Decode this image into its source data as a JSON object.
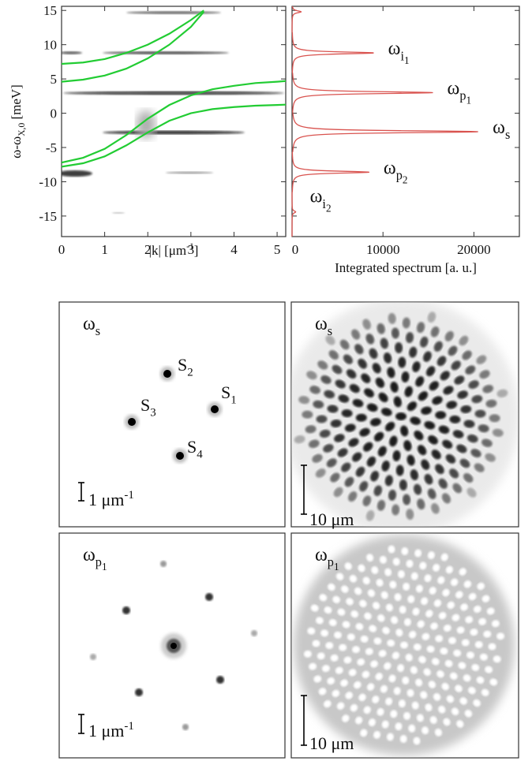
{
  "chart_data": [
    {
      "type": "line",
      "x_label": {
        "text": "|k| [μm",
        "sup": "-1",
        "after": "]"
      },
      "y_label": {
        "text": "ω-ω",
        "sub": "X,0",
        "after": " [meV]"
      },
      "xlim": [
        0,
        5.2
      ],
      "ylim": [
        -18,
        15.6
      ],
      "xticks": [
        0,
        1,
        2,
        3,
        4,
        5
      ],
      "yticks": [
        -15,
        -10,
        -5,
        0,
        5,
        10,
        15
      ],
      "series": [
        {
          "color": "#22cc33",
          "x": [
            0,
            0.5,
            1,
            1.5,
            2,
            2.5,
            3,
            3.5,
            4,
            4.5,
            5,
            5.2
          ],
          "values": [
            -7.2,
            -6.5,
            -5.2,
            -3.2,
            -0.8,
            1.2,
            2.6,
            3.5,
            4.0,
            4.4,
            4.6,
            4.7
          ]
        },
        {
          "color": "#22cc33",
          "x": [
            0,
            0.5,
            1,
            1.5,
            2,
            2.5,
            3,
            3.5,
            4,
            4.5,
            5,
            5.2
          ],
          "values": [
            -7.8,
            -7.3,
            -6.3,
            -4.7,
            -2.8,
            -1.1,
            0,
            0.6,
            0.9,
            1.1,
            1.2,
            1.25
          ]
        },
        {
          "color": "#22cc33",
          "x": [
            0,
            0.5,
            1,
            1.5,
            2,
            2.5,
            3,
            3.3
          ],
          "values": [
            7.2,
            7.4,
            7.9,
            8.8,
            10,
            11.6,
            13.6,
            15
          ]
        },
        {
          "color": "#22cc33",
          "x": [
            0,
            0.5,
            1,
            1.5,
            2,
            2.5,
            3,
            3.3
          ],
          "values": [
            4.6,
            4.9,
            5.5,
            6.5,
            8,
            10,
            12.6,
            14.8
          ]
        }
      ]
    },
    {
      "type": "spectrum",
      "x_label": "Integrated spectrum [a. u.]",
      "xlim": [
        0,
        25000
      ],
      "ylim": [
        -18,
        15.6
      ],
      "xticks": [
        0,
        10000,
        20000
      ],
      "color": "#d9534f",
      "peaks": [
        {
          "energy": 14.8,
          "intensity": 1000
        },
        {
          "energy": 8.8,
          "intensity": 9000,
          "label": {
            "text": "ω",
            "sub": "i",
            "subsub": "1"
          }
        },
        {
          "energy": 3.0,
          "intensity": 15500,
          "label": {
            "text": "ω",
            "sub": "p",
            "subsub": "1"
          }
        },
        {
          "energy": -2.7,
          "intensity": 20500,
          "label": {
            "text": "ω",
            "sub": "s"
          }
        },
        {
          "energy": -8.6,
          "intensity": 8500,
          "label": {
            "text": "ω",
            "sub": "p",
            "subsub": "2"
          }
        },
        {
          "energy": -14.4,
          "intensity": 400,
          "label": {
            "text": "ω",
            "sub": "i",
            "subsub": "2"
          }
        }
      ]
    }
  ],
  "panels": [
    {
      "title": {
        "text": "ω",
        "sub": "s"
      },
      "scale_bar": {
        "text": "1 μm",
        "sup": "-1"
      },
      "spot_labels": [
        {
          "text": "S",
          "sub": "1"
        },
        {
          "text": "S",
          "sub": "2"
        },
        {
          "text": "S",
          "sub": "3"
        },
        {
          "text": "S",
          "sub": "4"
        }
      ]
    },
    {
      "title": {
        "text": "ω",
        "sub": "s"
      },
      "scale_bar": {
        "text": "10 μm"
      }
    },
    {
      "title": {
        "text": "ω",
        "sub": "p",
        "subsub": "1"
      },
      "scale_bar": {
        "text": "1 μm",
        "sup": "-1"
      }
    },
    {
      "title": {
        "text": "ω",
        "sub": "p",
        "subsub": "1"
      },
      "scale_bar": {
        "text": "10 μm"
      }
    }
  ]
}
